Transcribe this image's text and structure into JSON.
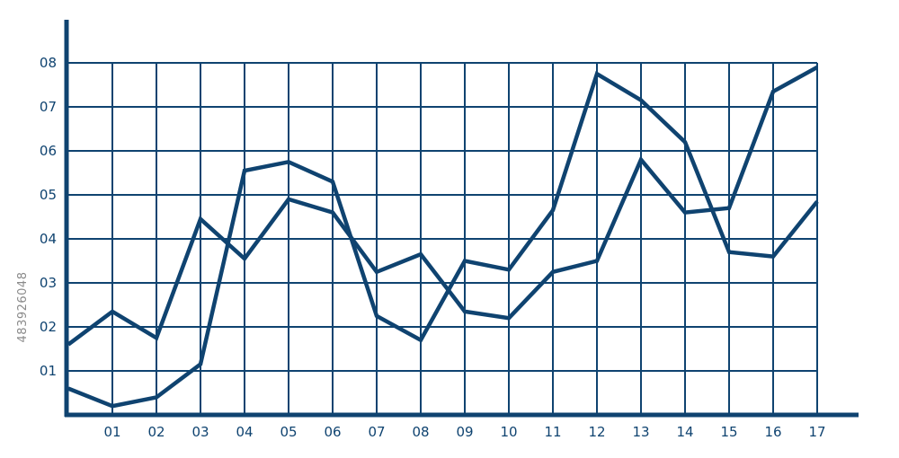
{
  "stock_id": "483926048",
  "chart_data": {
    "type": "line",
    "title": "",
    "xlabel": "",
    "ylabel": "",
    "x": [
      0,
      1,
      2,
      3,
      4,
      5,
      6,
      7,
      8,
      9,
      10,
      11,
      12,
      13,
      14,
      15,
      16,
      17
    ],
    "x_tick_labels": [
      "01",
      "02",
      "03",
      "04",
      "05",
      "06",
      "07",
      "08",
      "09",
      "10",
      "11",
      "12",
      "13",
      "14",
      "15",
      "16",
      "17"
    ],
    "y_tick_labels": [
      "01",
      "02",
      "03",
      "04",
      "05",
      "06",
      "07",
      "08"
    ],
    "xlim": [
      0,
      17
    ],
    "ylim": [
      0,
      8
    ],
    "grid": true,
    "legend": "none",
    "color": "#0f4370",
    "series": [
      {
        "values": [
          1.6,
          2.35,
          1.75,
          4.45,
          3.55,
          4.9,
          4.6,
          3.25,
          3.65,
          2.35,
          2.2,
          3.25,
          3.5,
          5.8,
          4.6,
          4.7,
          7.35,
          7.9
        ]
      },
      {
        "values": [
          0.6,
          0.2,
          0.4,
          1.15,
          5.55,
          5.75,
          5.3,
          2.25,
          1.7,
          3.5,
          3.3,
          4.65,
          7.75,
          7.15,
          6.2,
          3.7,
          3.6,
          4.85
        ]
      }
    ]
  }
}
